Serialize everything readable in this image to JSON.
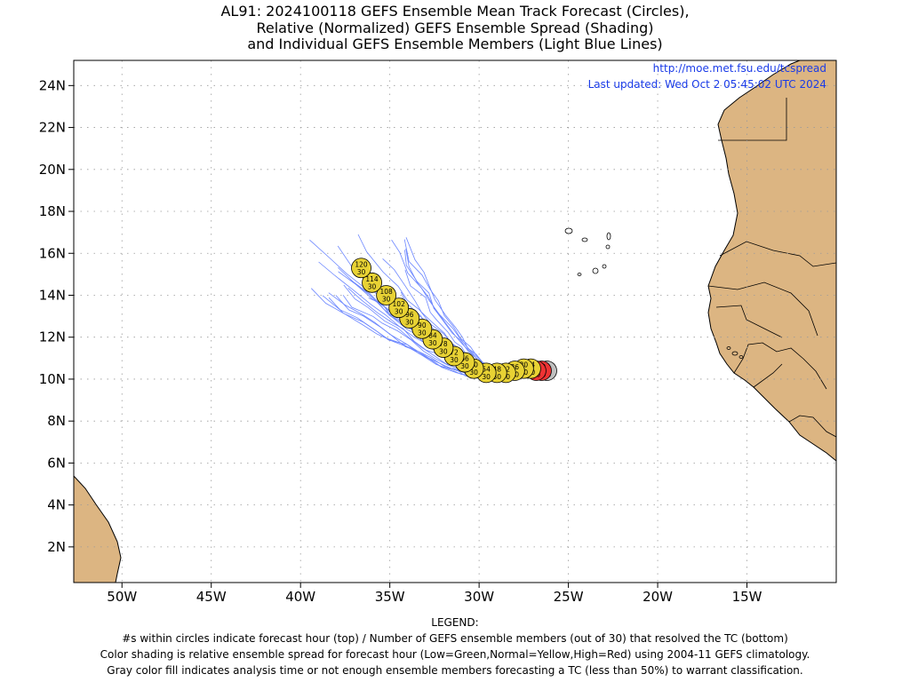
{
  "title": {
    "line1": "AL91: 2024100118 GEFS Ensemble Mean Track Forecast (Circles),",
    "line2": "Relative (Normalized) GEFS Ensemble Spread (Shading)",
    "line3": "and Individual GEFS Ensemble Members (Light Blue Lines)"
  },
  "header_links": {
    "url": "http://moe.met.fsu.edu/tcspread",
    "updated": "Last updated: Wed Oct 2 05:45:02 UTC 2024"
  },
  "axes": {
    "lat_labels": [
      "24N",
      "22N",
      "20N",
      "18N",
      "16N",
      "14N",
      "12N",
      "10N",
      "8N",
      "6N",
      "4N",
      "2N"
    ],
    "lat_values": [
      24,
      22,
      20,
      18,
      16,
      14,
      12,
      10,
      8,
      6,
      4,
      2
    ],
    "lon_labels": [
      "50W",
      "45W",
      "40W",
      "35W",
      "30W",
      "25W",
      "20W",
      "15W"
    ],
    "lon_values": [
      -50,
      -45,
      -40,
      -35,
      -30,
      -25,
      -20,
      -15
    ],
    "lon_range": [
      -52.7,
      -10.0
    ],
    "lat_range": [
      0.3,
      25.2
    ]
  },
  "colors": {
    "land": "#dcb582",
    "member_lines": "#6b86ff",
    "yellow": "#e8d234",
    "red": "#ee3333",
    "gray": "#c0c0c0",
    "url_text": "#1a3be8"
  },
  "track_points": [
    {
      "lon": -36.6,
      "lat": 15.3,
      "hour": "120",
      "members": "30",
      "color": "yellow"
    },
    {
      "lon": -36.0,
      "lat": 14.6,
      "hour": "114",
      "members": "30",
      "color": "yellow"
    },
    {
      "lon": -35.2,
      "lat": 14.0,
      "hour": "108",
      "members": "30",
      "color": "yellow"
    },
    {
      "lon": -34.5,
      "lat": 13.4,
      "hour": "102",
      "members": "30",
      "color": "yellow"
    },
    {
      "lon": -33.9,
      "lat": 12.9,
      "hour": "96",
      "members": "30",
      "color": "yellow"
    },
    {
      "lon": -33.2,
      "lat": 12.4,
      "hour": "90",
      "members": "30",
      "color": "yellow"
    },
    {
      "lon": -32.6,
      "lat": 11.9,
      "hour": "84",
      "members": "30",
      "color": "yellow"
    },
    {
      "lon": -32.0,
      "lat": 11.5,
      "hour": "78",
      "members": "30",
      "color": "yellow"
    },
    {
      "lon": -31.4,
      "lat": 11.1,
      "hour": "72",
      "members": "30",
      "color": "yellow"
    },
    {
      "lon": -30.8,
      "lat": 10.8,
      "hour": "66",
      "members": "30",
      "color": "yellow"
    },
    {
      "lon": -30.3,
      "lat": 10.5,
      "hour": "60",
      "members": "30",
      "color": "yellow"
    },
    {
      "lon": -29.6,
      "lat": 10.3,
      "hour": "54",
      "members": "30",
      "color": "yellow"
    },
    {
      "lon": -29.0,
      "lat": 10.3,
      "hour": "48",
      "members": "30",
      "color": "yellow"
    },
    {
      "lon": -28.5,
      "lat": 10.3,
      "hour": "42",
      "members": "30",
      "color": "yellow"
    },
    {
      "lon": -28.0,
      "lat": 10.4,
      "hour": "36",
      "members": "30",
      "color": "yellow"
    },
    {
      "lon": -27.5,
      "lat": 10.5,
      "hour": "30",
      "members": "30",
      "color": "yellow"
    },
    {
      "lon": -27.1,
      "lat": 10.5,
      "hour": "24",
      "members": "30",
      "color": "yellow"
    },
    {
      "lon": -26.8,
      "lat": 10.4,
      "hour": "18",
      "members": "30",
      "color": "red"
    },
    {
      "lon": -26.5,
      "lat": 10.4,
      "hour": "12",
      "members": "30",
      "color": "red"
    },
    {
      "lon": -26.2,
      "lat": 10.4,
      "hour": "0",
      "members": "30",
      "color": "gray"
    }
  ],
  "legend": {
    "heading": "LEGEND:",
    "line1": "#s within circles indicate forecast hour (top) / Number of GEFS ensemble members (out of 30) that resolved the TC (bottom)",
    "line2": "Color shading is relative ensemble spread for forecast hour (Low=Green,Normal=Yellow,High=Red) using 2004-11 GEFS climatology.",
    "line3": "Gray color fill indicates analysis time or not enough ensemble members forecasting a TC (less than 50%) to warrant classification."
  }
}
